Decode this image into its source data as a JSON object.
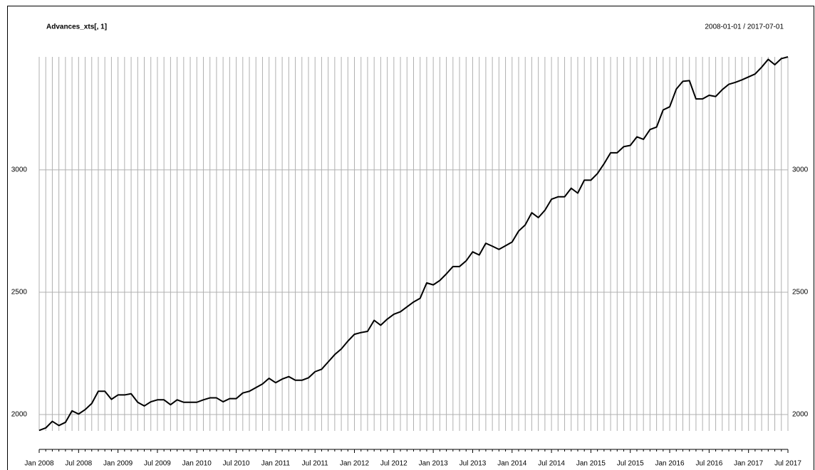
{
  "chart_data": {
    "type": "line",
    "title": "Advances_xts[, 1]",
    "subtitle": "2008-01-01 / 2017-07-01",
    "categories": [
      "Jan 2008",
      null,
      null,
      null,
      null,
      null,
      "Jul 2008",
      null,
      null,
      null,
      null,
      null,
      "Jan 2009",
      null,
      null,
      null,
      null,
      null,
      "Jul 2009",
      null,
      null,
      null,
      null,
      null,
      "Jan 2010",
      null,
      null,
      null,
      null,
      null,
      "Jul 2010",
      null,
      null,
      null,
      null,
      null,
      "Jan 2011",
      null,
      null,
      null,
      null,
      null,
      "Jul 2011",
      null,
      null,
      null,
      null,
      null,
      "Jan 2012",
      null,
      null,
      null,
      null,
      null,
      "Jul 2012",
      null,
      null,
      null,
      null,
      null,
      "Jan 2013",
      null,
      null,
      null,
      null,
      null,
      "Jul 2013",
      null,
      null,
      null,
      null,
      null,
      "Jan 2014",
      null,
      null,
      null,
      null,
      null,
      "Jul 2014",
      null,
      null,
      null,
      null,
      null,
      "Jan 2015",
      null,
      null,
      null,
      null,
      null,
      "Jul 2015",
      null,
      null,
      null,
      null,
      null,
      "Jan 2016",
      null,
      null,
      null,
      null,
      null,
      "Jul 2016",
      null,
      null,
      null,
      null,
      null,
      "Jan 2017",
      null,
      null,
      null,
      null,
      null,
      "Jul 2017"
    ],
    "series": [
      {
        "name": "Advances_xts[, 1]",
        "color": "#000000",
        "values": [
          1935,
          1945,
          1972,
          1955,
          1968,
          2015,
          2002,
          2020,
          2045,
          2095,
          2095,
          2062,
          2080,
          2080,
          2085,
          2050,
          2035,
          2052,
          2060,
          2060,
          2040,
          2060,
          2050,
          2050,
          2050,
          2060,
          2068,
          2068,
          2052,
          2065,
          2065,
          2088,
          2095,
          2110,
          2125,
          2148,
          2130,
          2145,
          2155,
          2140,
          2140,
          2150,
          2175,
          2185,
          2215,
          2245,
          2268,
          2300,
          2328,
          2335,
          2340,
          2385,
          2365,
          2390,
          2410,
          2420,
          2440,
          2460,
          2475,
          2538,
          2530,
          2548,
          2575,
          2605,
          2605,
          2628,
          2665,
          2652,
          2700,
          2688,
          2675,
          2690,
          2705,
          2750,
          2775,
          2825,
          2805,
          2835,
          2880,
          2890,
          2890,
          2925,
          2905,
          2958,
          2958,
          2985,
          3025,
          3070,
          3070,
          3095,
          3100,
          3135,
          3125,
          3165,
          3175,
          3245,
          3258,
          3330,
          3362,
          3365,
          3290,
          3290,
          3305,
          3300,
          3328,
          3350,
          3358,
          3368,
          3380,
          3392,
          3420,
          3452,
          3430,
          3455,
          3462
        ]
      }
    ],
    "ylim": [
      1933,
      3462
    ],
    "yticks": [
      2000,
      2500,
      3000
    ],
    "grid": true,
    "grid_color": "#b0b0b0"
  }
}
